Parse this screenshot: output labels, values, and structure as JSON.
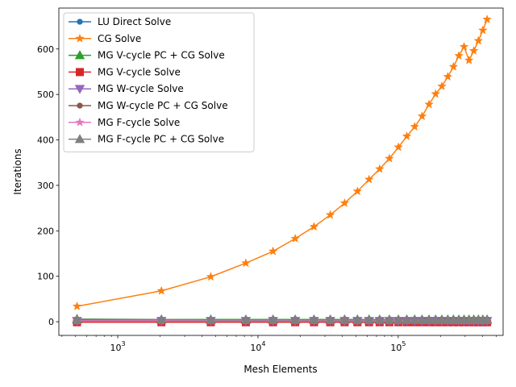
{
  "chart_data": {
    "type": "line",
    "xlabel": "Mesh Elements",
    "ylabel": "Iterations",
    "xscale": "log",
    "xlim": [
      380,
      560000
    ],
    "ylim": [
      -30,
      690
    ],
    "yticks": [
      0,
      100,
      200,
      300,
      400,
      500,
      600
    ],
    "xticks_major": [
      {
        "value": 1000,
        "base": "10",
        "exp": "3"
      },
      {
        "value": 10000,
        "base": "10",
        "exp": "4"
      },
      {
        "value": 100000,
        "base": "10",
        "exp": "5"
      }
    ],
    "grid": false,
    "legend_position": "top-left",
    "x": [
      512,
      2048,
      4608,
      8192,
      12800,
      18432,
      25088,
      32768,
      41472,
      51200,
      61952,
      73728,
      86528,
      100352,
      115200,
      131072,
      147968,
      165888,
      184832,
      204800,
      225792,
      247808,
      270848,
      294912,
      320000,
      346112,
      373248,
      401408,
      430592
    ],
    "series": [
      {
        "name": "LU Direct Solve",
        "color": "#1f77b4",
        "marker": "dot",
        "values": [
          1,
          1,
          1,
          1,
          1,
          1,
          1,
          1,
          1,
          1,
          1,
          1,
          1,
          1,
          1,
          1,
          1,
          1,
          1,
          1,
          1,
          1,
          1,
          1,
          1,
          1,
          1,
          1,
          1
        ]
      },
      {
        "name": "CG Solve",
        "color": "#ff7f0e",
        "marker": "star",
        "values": [
          34,
          68,
          99,
          129,
          155,
          183,
          209,
          235,
          261,
          287,
          313,
          336,
          359,
          384,
          408,
          429,
          452,
          478,
          501,
          518,
          539,
          561,
          585,
          605,
          575,
          596,
          618,
          641,
          665
        ]
      },
      {
        "name": "MG V-cycle PC + CG Solve",
        "color": "#2ca02c",
        "marker": "triangle-up",
        "values": [
          6,
          5,
          5,
          5,
          5,
          5,
          5,
          5,
          5,
          5,
          5,
          5,
          5,
          5,
          5,
          5,
          5,
          5,
          5,
          5,
          5,
          5,
          5,
          5,
          5,
          5,
          5,
          5,
          5
        ]
      },
      {
        "name": "MG V-cycle Solve",
        "color": "#d62728",
        "marker": "square",
        "values": [
          -1,
          -1,
          -1,
          -1,
          -1,
          -1,
          -1,
          -1,
          -1,
          -1,
          -1,
          -1,
          -1,
          -1,
          -1,
          -1,
          -1,
          -1,
          -1,
          -1,
          -1,
          -1,
          -1,
          -1,
          -1,
          -1,
          -1,
          -1,
          -1
        ]
      },
      {
        "name": "MG W-cycle Solve",
        "color": "#9467bd",
        "marker": "triangle-down",
        "values": [
          2,
          2,
          2,
          2,
          2,
          2,
          2,
          2,
          2,
          2,
          2,
          2,
          2,
          2,
          2,
          2,
          2,
          2,
          2,
          2,
          2,
          2,
          2,
          2,
          2,
          2,
          2,
          2,
          2
        ]
      },
      {
        "name": "MG W-cycle PC + CG Solve",
        "color": "#8c564b",
        "marker": "dot",
        "values": [
          4,
          4,
          4,
          4,
          4,
          4,
          4,
          4,
          4,
          4,
          4,
          4,
          4,
          4,
          4,
          4,
          4,
          4,
          4,
          4,
          4,
          4,
          4,
          4,
          4,
          4,
          4,
          4,
          4
        ]
      },
      {
        "name": "MG F-cycle Solve",
        "color": "#e377c2",
        "marker": "star",
        "values": [
          2,
          2,
          2,
          2,
          2,
          2,
          2,
          2,
          2,
          2,
          2,
          2,
          2,
          2,
          2,
          2,
          2,
          2,
          2,
          2,
          2,
          2,
          2,
          2,
          2,
          2,
          2,
          2,
          2
        ]
      },
      {
        "name": "MG F-cycle PC + CG Solve",
        "color": "#7f7f7f",
        "marker": "triangle-up",
        "values": [
          5,
          5,
          4,
          4,
          4,
          4,
          4,
          4,
          4,
          4,
          4,
          4,
          4,
          4,
          4,
          4,
          4,
          4,
          4,
          4,
          4,
          4,
          4,
          4,
          4,
          4,
          4,
          4,
          4
        ]
      }
    ]
  }
}
